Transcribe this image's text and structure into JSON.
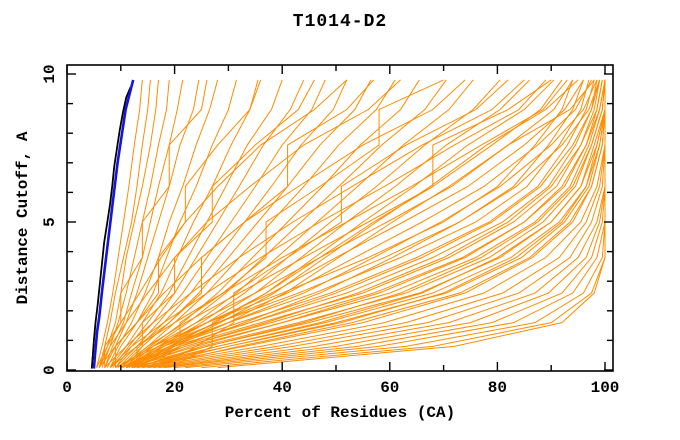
{
  "window": {
    "title": "T1014-D2"
  },
  "chart_data": {
    "type": "line",
    "title": "T1014-D2",
    "xlabel": "Percent of Residues (CA)",
    "ylabel": "Distance Cutoff, A",
    "xlim": [
      0,
      100
    ],
    "ylim": [
      0,
      10
    ],
    "x_tick_minor_step": 10,
    "x_ticks_labeled": [
      0,
      20,
      40,
      60,
      80,
      100
    ],
    "y_tick_minor_step": 1,
    "y_ticks_labeled": [
      0,
      5,
      10
    ],
    "grid": "off",
    "legend": "none",
    "colors": {
      "model_curves": "#FF8C00",
      "highlight_curve": "#1414DC",
      "reference_curve": "#000000",
      "axis": "#000000"
    },
    "series_note": "model accuracy curves: percent of CA residues under each distance cutoff",
    "y_grid": [
      0.08,
      0.8,
      1.6,
      2.6,
      3.8,
      5.0,
      6.2,
      7.6,
      8.8,
      9.8
    ],
    "model_curves_x_at_y": [
      [
        5.5,
        6.5,
        7.5,
        8.5,
        9.5,
        10.5,
        11.5,
        12.5,
        13.5,
        14
      ],
      [
        6,
        7,
        8,
        9,
        10.5,
        12,
        13,
        14,
        15,
        15.5
      ],
      [
        6,
        7.5,
        9,
        10,
        11,
        12.5,
        14,
        15.5,
        16.5,
        17
      ],
      [
        6.5,
        8,
        9.5,
        11,
        12.5,
        14,
        15.5,
        17,
        18.5,
        19
      ],
      [
        7,
        8.5,
        10.5,
        12,
        14,
        15.5,
        17,
        19,
        20.5,
        21.5
      ],
      [
        7,
        9,
        11,
        13,
        15,
        17,
        19,
        21,
        23.5,
        24.5
      ],
      [
        7.5,
        9.5,
        12,
        14.5,
        17,
        19,
        21.5,
        24,
        26.5,
        28
      ],
      [
        8,
        10,
        13,
        16,
        18.5,
        21,
        24,
        27,
        30,
        31.5
      ],
      [
        8,
        11,
        14,
        17.5,
        20.5,
        23.5,
        27,
        30.5,
        34,
        35.5
      ],
      [
        8.5,
        11.5,
        15,
        19,
        22.5,
        26,
        29.5,
        33.5,
        38,
        40
      ],
      [
        9,
        12,
        16,
        20,
        24,
        28,
        32,
        36.5,
        41.5,
        44
      ],
      [
        9,
        13,
        17,
        21.5,
        26,
        30.5,
        35,
        40,
        45.5,
        48
      ],
      [
        9.5,
        13.5,
        18,
        23,
        28,
        33,
        38,
        43.5,
        49.5,
        52
      ],
      [
        10,
        14,
        19,
        24.5,
        30,
        35.5,
        41,
        47,
        53.5,
        56.5
      ],
      [
        10,
        15,
        20,
        26,
        32,
        38,
        44,
        50.5,
        57.5,
        61
      ],
      [
        10.5,
        15.5,
        21.5,
        28,
        34.5,
        41,
        47.5,
        54.5,
        62,
        65.5
      ],
      [
        11,
        16,
        22.5,
        29.5,
        36.5,
        43.5,
        50.5,
        58.5,
        66.5,
        70.5
      ],
      [
        11,
        17,
        24,
        31.5,
        39,
        46.5,
        54,
        62.5,
        71,
        75.5
      ],
      [
        11.5,
        17.5,
        25,
        33,
        41,
        49,
        57.5,
        66.5,
        75.5,
        80.5
      ],
      [
        12,
        18,
        26,
        35,
        43.5,
        52,
        61,
        70.5,
        80.5,
        86
      ],
      [
        12,
        19,
        27.5,
        37,
        46,
        55,
        64.5,
        74.5,
        85,
        90.5
      ],
      [
        12.5,
        19.5,
        28.5,
        38.5,
        48,
        57.5,
        67.5,
        78,
        89,
        95
      ],
      [
        13,
        20,
        30,
        40.5,
        50.5,
        60.5,
        71,
        82,
        93.5,
        98
      ],
      [
        7,
        7,
        10,
        10,
        14,
        14,
        19,
        19,
        25,
        26
      ],
      [
        9,
        9,
        13,
        17,
        17,
        22,
        22,
        28,
        34,
        36
      ],
      [
        11,
        14,
        14,
        20,
        20,
        27,
        27,
        35,
        43,
        46
      ],
      [
        13,
        13,
        19,
        25,
        25,
        33,
        41,
        41,
        52,
        57
      ],
      [
        15,
        21,
        21,
        29,
        37,
        37,
        47,
        58,
        58,
        70
      ],
      [
        17,
        24,
        31,
        31,
        41,
        51,
        51,
        63,
        76,
        82
      ],
      [
        19,
        27,
        27,
        37,
        47,
        57,
        68,
        68,
        82,
        90
      ],
      [
        10,
        20,
        34,
        50,
        66,
        79,
        88,
        94,
        97.5,
        99
      ],
      [
        10,
        22,
        37,
        54,
        70,
        82,
        90,
        95.5,
        98.5,
        99.5
      ],
      [
        11,
        24,
        40,
        58,
        74,
        85,
        92,
        96.5,
        99,
        100
      ],
      [
        11,
        26,
        44,
        62,
        77,
        87.5,
        94,
        97.5,
        99.5,
        100
      ],
      [
        12,
        28,
        47,
        66,
        80,
        90,
        95.5,
        98.5,
        100,
        100
      ],
      [
        12,
        30,
        51,
        70,
        83.5,
        92,
        96.5,
        99,
        100,
        100
      ],
      [
        13,
        33,
        55,
        74,
        86.5,
        94,
        97.5,
        99.5,
        100,
        100
      ],
      [
        13,
        36,
        59,
        77.5,
        89,
        95.5,
        98.5,
        100,
        100,
        100
      ],
      [
        14,
        39,
        63,
        81,
        91.5,
        96.5,
        99,
        100,
        100,
        100
      ],
      [
        15,
        42,
        67,
        84,
        93.5,
        97.5,
        99.5,
        100,
        100,
        100
      ],
      [
        16,
        46,
        71,
        87,
        95,
        98.5,
        100,
        100,
        100,
        100
      ],
      [
        17,
        50,
        75,
        89.5,
        96.5,
        99,
        100,
        100,
        100,
        100
      ],
      [
        18,
        54,
        79,
        92,
        97.5,
        99.5,
        100,
        100,
        100,
        100
      ],
      [
        20,
        58,
        83,
        94,
        98.5,
        100,
        100,
        100,
        100,
        100
      ],
      [
        22,
        63,
        87,
        96,
        99.5,
        100,
        100,
        100,
        100,
        100
      ],
      [
        25,
        68,
        90,
        97.5,
        100,
        100,
        100,
        100,
        100,
        100
      ],
      [
        28,
        72,
        92,
        98,
        100,
        100,
        100,
        100,
        100,
        100
      ],
      [
        9,
        16,
        26,
        40,
        56,
        70,
        80,
        87,
        92,
        94
      ],
      [
        9,
        17,
        28,
        43,
        59,
        73,
        83,
        89.5,
        94,
        96
      ],
      [
        10,
        18,
        30,
        46,
        62,
        76,
        85.5,
        91.5,
        95.5,
        97
      ],
      [
        10,
        19,
        32,
        49,
        65,
        78.5,
        87.5,
        93,
        96.5,
        98
      ],
      [
        11,
        20,
        34,
        52,
        68,
        81,
        89.5,
        94.5,
        97.5,
        98.5
      ],
      [
        11,
        21,
        36,
        55,
        71,
        83,
        91,
        95.5,
        98,
        99
      ],
      [
        12,
        22,
        38,
        57,
        73.5,
        85,
        92.5,
        96.5,
        98.5,
        99.5
      ],
      [
        12,
        23,
        40,
        60,
        76,
        87,
        93.5,
        97,
        99,
        100
      ],
      [
        13,
        25,
        43,
        63,
        78.5,
        88.5,
        94.5,
        97.5,
        99.5,
        100
      ],
      [
        13,
        26,
        45,
        65.5,
        80.5,
        90,
        95.5,
        98,
        100,
        100
      ],
      [
        14,
        28,
        48,
        68,
        82.5,
        91.5,
        96.5,
        98.5,
        100,
        100
      ],
      [
        14,
        30,
        50,
        70.5,
        84.5,
        92.5,
        97,
        99,
        100,
        100
      ],
      [
        15,
        32,
        53,
        73,
        86,
        93.5,
        97.5,
        99.5,
        100,
        100
      ],
      [
        10,
        15,
        22,
        32,
        44,
        56,
        68,
        79,
        88,
        92
      ],
      [
        11,
        16,
        24,
        35,
        47,
        59.5,
        71.5,
        82,
        90.5,
        94
      ],
      [
        11,
        17,
        26,
        38,
        50,
        62.5,
        74.5,
        85,
        92.5,
        96
      ],
      [
        12,
        18,
        28,
        41,
        53.5,
        66,
        77.5,
        87.5,
        94.5,
        97.5
      ],
      [
        12,
        19,
        30,
        44,
        57,
        69.5,
        80.5,
        90,
        96,
        98.5
      ],
      [
        13,
        21,
        33,
        47,
        60.5,
        73,
        83.5,
        92,
        97,
        99
      ],
      [
        8,
        12,
        18,
        26,
        36,
        47,
        59,
        72,
        84,
        89
      ],
      [
        8,
        13,
        20,
        29,
        40,
        52,
        64,
        77,
        88.5,
        93
      ],
      [
        7,
        11,
        16,
        23,
        32,
        42,
        53,
        66,
        79,
        85
      ],
      [
        6,
        9,
        13,
        18,
        25,
        33,
        43,
        55,
        68,
        74
      ],
      [
        6,
        8,
        11,
        15,
        20,
        26,
        34,
        44,
        56,
        62
      ],
      [
        5.5,
        7.5,
        10,
        13.5,
        17.5,
        22,
        28,
        36,
        46,
        52
      ]
    ],
    "highlight_curve": [
      [
        5.0,
        0.05
      ],
      [
        5.2,
        0.5
      ],
      [
        5.4,
        0.9
      ],
      [
        5.6,
        1.3
      ],
      [
        6.0,
        1.8
      ],
      [
        6.3,
        2.3
      ],
      [
        6.6,
        2.8
      ],
      [
        7.0,
        3.4
      ],
      [
        7.4,
        4.0
      ],
      [
        7.8,
        4.6
      ],
      [
        8.2,
        5.2
      ],
      [
        8.6,
        5.8
      ],
      [
        9.0,
        6.4
      ],
      [
        9.4,
        7.0
      ],
      [
        9.9,
        7.6
      ],
      [
        10.4,
        8.2
      ],
      [
        10.9,
        8.8
      ],
      [
        11.6,
        9.3
      ],
      [
        12.3,
        9.8
      ]
    ],
    "reference_curve": [
      [
        4.6,
        0.05
      ],
      [
        4.8,
        0.5
      ],
      [
        5.0,
        1.0
      ],
      [
        5.3,
        1.6
      ],
      [
        5.7,
        2.2
      ],
      [
        6.1,
        2.9
      ],
      [
        6.5,
        3.6
      ],
      [
        6.9,
        4.3
      ],
      [
        7.5,
        5.0
      ],
      [
        8.0,
        5.6
      ],
      [
        8.4,
        6.2
      ],
      [
        8.8,
        6.9
      ],
      [
        9.3,
        7.5
      ],
      [
        9.8,
        8.1
      ],
      [
        10.4,
        8.7
      ],
      [
        11.0,
        9.2
      ],
      [
        11.8,
        9.55
      ]
    ]
  }
}
